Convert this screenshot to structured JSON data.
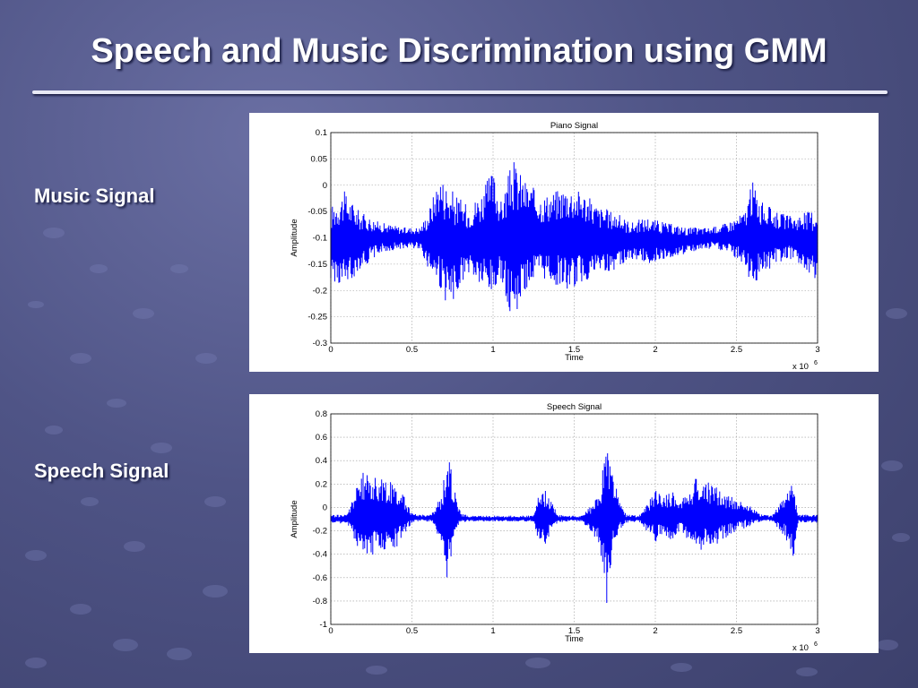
{
  "slide": {
    "title": "Speech and Music Discrimination using GMM"
  },
  "labels": {
    "music": "Music Signal",
    "speech": "Speech Signal"
  },
  "colors": {
    "waveform": "#0000ff",
    "background": "#4f5486"
  },
  "chart_data": [
    {
      "type": "line",
      "title": "Piano Signal",
      "xlabel": "Time",
      "ylabel": "Amplitude",
      "x_multiplier": "x 10",
      "x_multiplier_exp": "6",
      "xlim": [
        0,
        3
      ],
      "ylim": [
        -0.3,
        0.1
      ],
      "xticks": [
        "0",
        "0.5",
        "1",
        "1.5",
        "2",
        "2.5",
        "3"
      ],
      "yticks": [
        "0.1",
        "0.05",
        "0",
        "-0.05",
        "-0.1",
        "-0.15",
        "-0.2",
        "-0.25",
        "-0.3"
      ],
      "grid": true,
      "series": [
        {
          "envelope": {
            "x": [
              0,
              0.08,
              0.18,
              0.3,
              0.45,
              0.55,
              0.6,
              0.67,
              0.73,
              0.78,
              0.85,
              0.93,
              1.0,
              1.05,
              1.12,
              1.2,
              1.3,
              1.45,
              1.55,
              1.65,
              1.75,
              1.85,
              1.95,
              2.05,
              2.2,
              2.35,
              2.45,
              2.55,
              2.6,
              2.65,
              2.75,
              2.85,
              2.93,
              3.0
            ],
            "upper": [
              -0.04,
              -0.01,
              -0.05,
              -0.07,
              -0.08,
              -0.08,
              -0.05,
              0.02,
              0.0,
              -0.02,
              -0.04,
              -0.01,
              0.03,
              -0.03,
              0.05,
              0.01,
              -0.02,
              0.0,
              -0.01,
              -0.04,
              -0.05,
              -0.07,
              -0.06,
              -0.07,
              -0.08,
              -0.08,
              -0.07,
              -0.05,
              0.01,
              -0.03,
              -0.05,
              -0.06,
              -0.05,
              -0.04
            ],
            "lower": [
              -0.18,
              -0.2,
              -0.16,
              -0.13,
              -0.12,
              -0.12,
              -0.16,
              -0.2,
              -0.24,
              -0.2,
              -0.17,
              -0.2,
              -0.22,
              -0.18,
              -0.26,
              -0.2,
              -0.18,
              -0.2,
              -0.19,
              -0.17,
              -0.16,
              -0.14,
              -0.15,
              -0.14,
              -0.13,
              -0.12,
              -0.13,
              -0.15,
              -0.2,
              -0.17,
              -0.15,
              -0.14,
              -0.16,
              -0.19
            ]
          }
        }
      ]
    },
    {
      "type": "line",
      "title": "Speech Signal",
      "xlabel": "Time",
      "ylabel": "Amplitude",
      "x_multiplier": "x 10",
      "x_multiplier_exp": "6",
      "xlim": [
        0,
        3
      ],
      "ylim": [
        -1,
        0.8
      ],
      "xticks": [
        "0",
        "0.5",
        "1",
        "1.5",
        "2",
        "2.5",
        "3"
      ],
      "yticks": [
        "0.8",
        "0.6",
        "0.4",
        "0.2",
        "0",
        "-0.2",
        "-0.4",
        "-0.6",
        "-0.8",
        "-1"
      ],
      "grid": true,
      "series": [
        {
          "envelope": {
            "x": [
              0,
              0.1,
              0.15,
              0.2,
              0.3,
              0.4,
              0.45,
              0.5,
              0.55,
              0.62,
              0.68,
              0.72,
              0.75,
              0.8,
              0.85,
              0.95,
              1.1,
              1.25,
              1.28,
              1.32,
              1.36,
              1.4,
              1.45,
              1.55,
              1.65,
              1.7,
              1.74,
              1.78,
              1.82,
              1.9,
              2.0,
              2.05,
              2.1,
              2.15,
              2.25,
              2.35,
              2.45,
              2.55,
              2.65,
              2.72,
              2.8,
              2.85,
              2.88,
              3.0
            ],
            "upper": [
              -0.06,
              -0.06,
              0.15,
              0.3,
              0.25,
              0.2,
              0.1,
              -0.05,
              -0.06,
              -0.06,
              0.1,
              0.5,
              0.25,
              -0.05,
              -0.07,
              -0.07,
              -0.07,
              -0.07,
              0.1,
              0.15,
              0.05,
              -0.06,
              -0.07,
              -0.07,
              0.1,
              0.6,
              0.3,
              0.05,
              -0.06,
              -0.07,
              0.15,
              0.1,
              0.15,
              0.05,
              0.25,
              0.2,
              0.1,
              0.05,
              -0.06,
              -0.07,
              0.1,
              0.22,
              -0.06,
              -0.06
            ],
            "lower": [
              -0.14,
              -0.14,
              -0.3,
              -0.45,
              -0.38,
              -0.35,
              -0.25,
              -0.13,
              -0.12,
              -0.12,
              -0.3,
              -0.65,
              -0.35,
              -0.13,
              -0.12,
              -0.12,
              -0.12,
              -0.12,
              -0.28,
              -0.32,
              -0.2,
              -0.13,
              -0.12,
              -0.12,
              -0.3,
              -0.85,
              -0.4,
              -0.2,
              -0.13,
              -0.12,
              -0.3,
              -0.25,
              -0.3,
              -0.2,
              -0.4,
              -0.35,
              -0.25,
              -0.18,
              -0.12,
              -0.12,
              -0.25,
              -0.45,
              -0.13,
              -0.13
            ]
          }
        }
      ]
    }
  ]
}
